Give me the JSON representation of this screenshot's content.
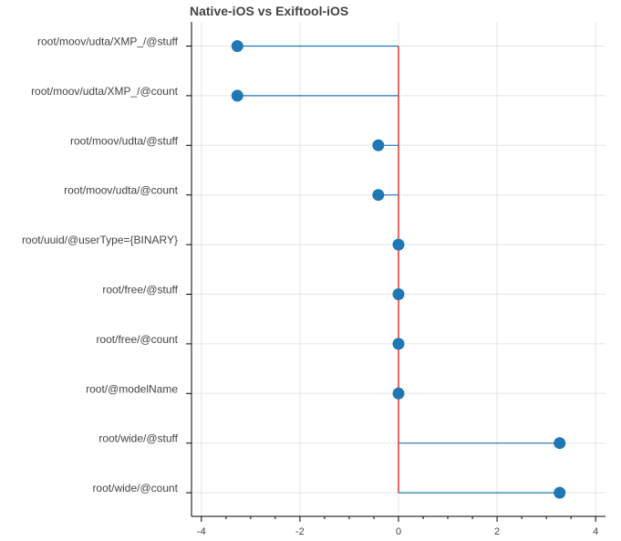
{
  "chart_data": {
    "type": "lollipop",
    "title": "Native-iOS vs Exiftool-iOS",
    "xlabel": "",
    "ylabel": "",
    "xlim": [
      -4.2,
      4.2
    ],
    "x_ticks": [
      -4,
      -2,
      0,
      2,
      4
    ],
    "x_tick_labels": [
      "-4",
      "-2",
      "0",
      "2",
      "4"
    ],
    "baseline": 0,
    "grid": true,
    "categories": [
      "root/moov/udta/XMP_/@stuff",
      "root/moov/udta/XMP_/@count",
      "root/moov/udta/@stuff",
      "root/moov/udta/@count",
      "root/uuid/@userType={BINARY}",
      "root/free/@stuff",
      "root/free/@count",
      "root/@modelName",
      "root/wide/@stuff",
      "root/wide/@count"
    ],
    "values": [
      -3.27,
      -3.27,
      -0.41,
      -0.41,
      0,
      0,
      0,
      0,
      3.27,
      3.27
    ],
    "colors": {
      "marker": "#1f77b4",
      "stem": "#1f77b4",
      "baseline": "#e8352b",
      "grid": "#e5e5e5",
      "axis": "#000000",
      "text": "#444444"
    }
  }
}
